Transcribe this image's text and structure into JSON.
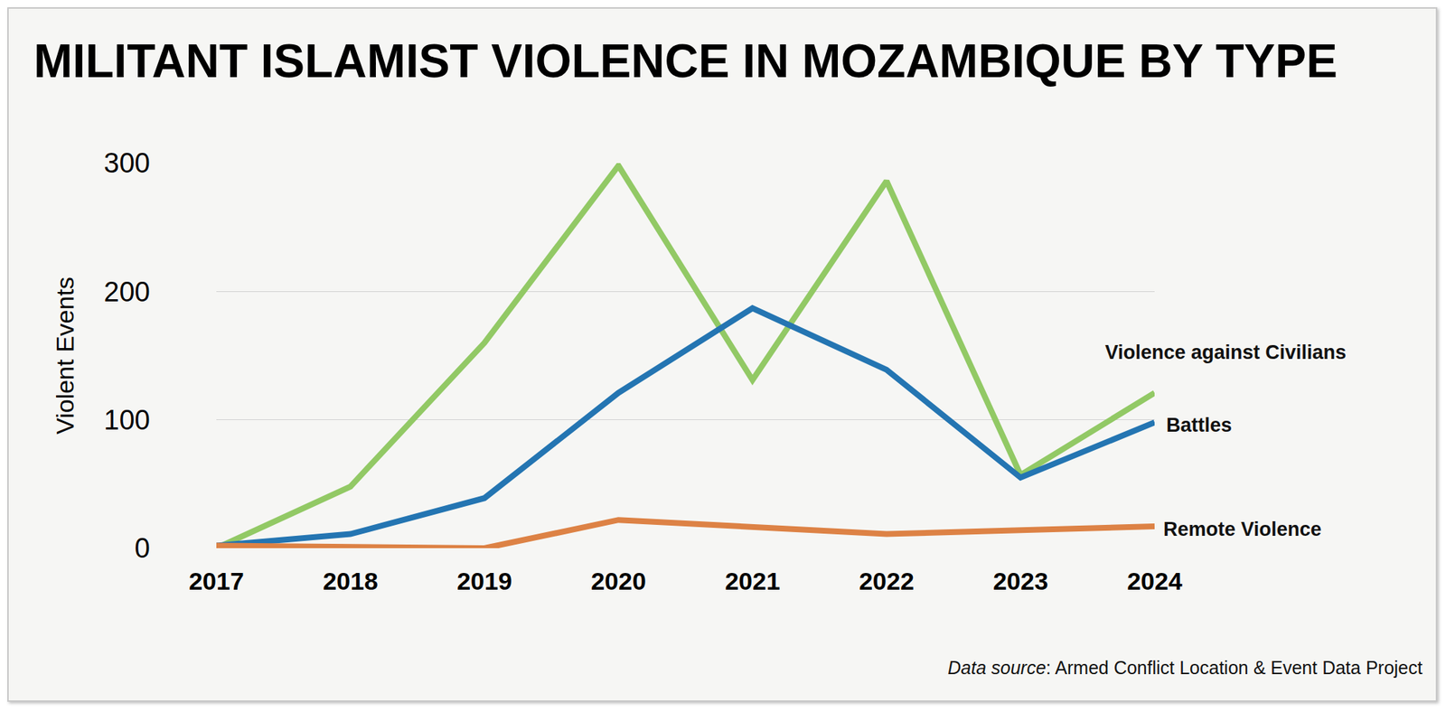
{
  "chart_data": {
    "type": "line",
    "title": "MILITANT ISLAMIST VIOLENCE IN MOZAMBIQUE BY TYPE",
    "y_label": "Violent Events",
    "note": "Data source: Armed Conflict Location & Event Data Project",
    "categories": [
      "2017",
      "2018",
      "2019",
      "2020",
      "2021",
      "2022",
      "2023",
      "2024"
    ],
    "series": [
      {
        "name": "Violence against Civilians",
        "color": "#92c965",
        "values": [
          0,
          48,
          160,
          298,
          131,
          286,
          57,
          121
        ]
      },
      {
        "name": "Battles",
        "color": "#2475b2",
        "values": [
          2,
          11,
          39,
          121,
          187,
          139,
          55,
          98
        ]
      },
      {
        "name": "Remote Violence",
        "color": "#dd8245",
        "values": [
          2,
          1,
          0,
          22,
          17,
          11,
          14,
          17
        ]
      }
    ],
    "ylim": [
      0,
      300
    ],
    "yticks": [
      0,
      100,
      200,
      300
    ],
    "grid": true
  }
}
